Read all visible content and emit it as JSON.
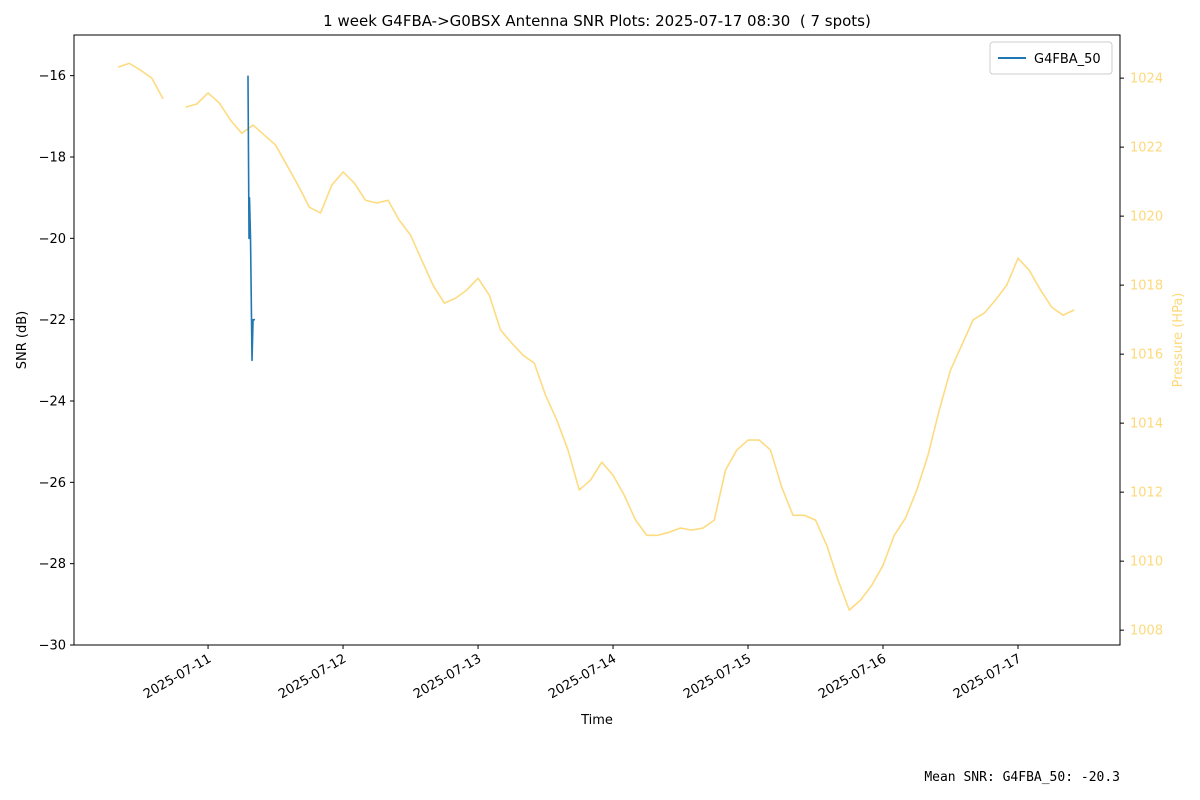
{
  "chart_data": {
    "type": "line",
    "title": "1 week G4FBA->G0BSX Antenna SNR Plots: 2025-07-17 08:30  ( 7 spots)",
    "x_label": "Time",
    "y_label": "SNR (dB)",
    "y2_label": "Pressure (HPa)",
    "footnote": "Mean SNR: G4FBA_50: -20.3",
    "legend": "upper right",
    "xlim": [
      "2025-07-10 00:10",
      "2025-07-17 18:08"
    ],
    "xticks": [
      "2025-07-11",
      "2025-07-12",
      "2025-07-13",
      "2025-07-14",
      "2025-07-15",
      "2025-07-16",
      "2025-07-17"
    ],
    "ylim": [
      -30,
      -15
    ],
    "yticks": [
      {
        "value": -30,
        "label": "−30"
      },
      {
        "value": -28,
        "label": "−28"
      },
      {
        "value": -26,
        "label": "−26"
      },
      {
        "value": -24,
        "label": "−24"
      },
      {
        "value": -22,
        "label": "−22"
      },
      {
        "value": -20,
        "label": "−20"
      },
      {
        "value": -18,
        "label": "−18"
      },
      {
        "value": -16,
        "label": "−16"
      }
    ],
    "y2lim": [
      1007.57,
      1025.25
    ],
    "y2ticks": [
      1008,
      1010,
      1012,
      1014,
      1016,
      1018,
      1020,
      1022,
      1024
    ],
    "series": [
      {
        "name": "G4FBA_50",
        "color": "#1f77b4",
        "x": [
          "2025-07-11 07:06",
          "2025-07-11 07:17",
          "2025-07-11 07:22",
          "2025-07-11 07:33",
          "2025-07-11 07:49",
          "2025-07-11 08:00",
          "2025-07-11 08:21"
        ],
        "values": [
          -16,
          -20,
          -19,
          -20,
          -23,
          -22,
          -22
        ]
      },
      {
        "color": "#fdd97a",
        "axis": "y2",
        "x": [
          "2025-07-10 08:00",
          "2025-07-10 10:00",
          "2025-07-10 12:00",
          "2025-07-10 14:00",
          "2025-07-10 16:00",
          "2025-07-10 18:00",
          "2025-07-10 20:00",
          "2025-07-10 22:00",
          "2025-07-11 00:00",
          "2025-07-11 02:00",
          "2025-07-11 04:00",
          "2025-07-11 06:00",
          "2025-07-11 08:00",
          "2025-07-11 10:00",
          "2025-07-11 12:00",
          "2025-07-11 14:00",
          "2025-07-11 16:00",
          "2025-07-11 18:00",
          "2025-07-11 20:00",
          "2025-07-11 22:00",
          "2025-07-12 00:00",
          "2025-07-12 02:00",
          "2025-07-12 04:00",
          "2025-07-12 06:00",
          "2025-07-12 08:00",
          "2025-07-12 10:00",
          "2025-07-12 12:00",
          "2025-07-12 14:00",
          "2025-07-12 16:00",
          "2025-07-12 18:00",
          "2025-07-12 20:00",
          "2025-07-12 22:00",
          "2025-07-13 00:00",
          "2025-07-13 02:00",
          "2025-07-13 04:00",
          "2025-07-13 06:00",
          "2025-07-13 08:00",
          "2025-07-13 10:00",
          "2025-07-13 12:00",
          "2025-07-13 14:00",
          "2025-07-13 16:00",
          "2025-07-13 18:00",
          "2025-07-13 20:00",
          "2025-07-13 22:00",
          "2025-07-14 00:00",
          "2025-07-14 02:00",
          "2025-07-14 04:00",
          "2025-07-14 06:00",
          "2025-07-14 08:00",
          "2025-07-14 10:00",
          "2025-07-14 12:00",
          "2025-07-14 14:00",
          "2025-07-14 16:00",
          "2025-07-14 18:00",
          "2025-07-14 20:00",
          "2025-07-14 22:00",
          "2025-07-15 00:00",
          "2025-07-15 02:00",
          "2025-07-15 04:00",
          "2025-07-15 06:00",
          "2025-07-15 08:00",
          "2025-07-15 10:00",
          "2025-07-15 12:00",
          "2025-07-15 14:00",
          "2025-07-15 16:00",
          "2025-07-15 18:00",
          "2025-07-15 20:00",
          "2025-07-15 22:00",
          "2025-07-16 00:00",
          "2025-07-16 02:00",
          "2025-07-16 04:00",
          "2025-07-16 06:00",
          "2025-07-16 08:00",
          "2025-07-16 10:00",
          "2025-07-16 12:00",
          "2025-07-16 14:00",
          "2025-07-16 16:00",
          "2025-07-16 18:00",
          "2025-07-16 20:00",
          "2025-07-16 22:00",
          "2025-07-17 00:00",
          "2025-07-17 02:00",
          "2025-07-17 04:00",
          "2025-07-17 06:00",
          "2025-07-17 08:00",
          "2025-07-17 10:00"
        ],
        "values": [
          1024.32,
          1024.43,
          1024.23,
          1024.0,
          1023.4,
          null,
          1023.16,
          1023.25,
          1023.57,
          1023.28,
          1022.78,
          1022.4,
          1022.64,
          1022.35,
          1022.06,
          1021.48,
          1020.9,
          1020.26,
          1020.09,
          1020.9,
          1021.28,
          1020.96,
          1020.46,
          1020.38,
          1020.46,
          1019.88,
          1019.45,
          1018.72,
          1018.0,
          1017.48,
          1017.62,
          1017.86,
          1018.2,
          1017.71,
          1016.7,
          1016.32,
          1015.97,
          1015.74,
          1014.81,
          1014.09,
          1013.22,
          1012.06,
          1012.35,
          1012.87,
          1012.49,
          1011.91,
          1011.19,
          1010.75,
          1010.75,
          1010.84,
          1010.96,
          1010.9,
          1010.96,
          1011.19,
          1012.64,
          1013.22,
          1013.51,
          1013.51,
          1013.22,
          1012.14,
          1011.33,
          1011.33,
          1011.19,
          1010.46,
          1009.45,
          1008.58,
          1008.87,
          1009.3,
          1009.88,
          1010.75,
          1011.25,
          1012.06,
          1013.07,
          1014.38,
          1015.54,
          1016.26,
          1016.99,
          1017.19,
          1017.57,
          1018.0,
          1018.78,
          1018.43,
          1017.86,
          1017.36,
          1017.13,
          1017.28
        ]
      }
    ]
  }
}
